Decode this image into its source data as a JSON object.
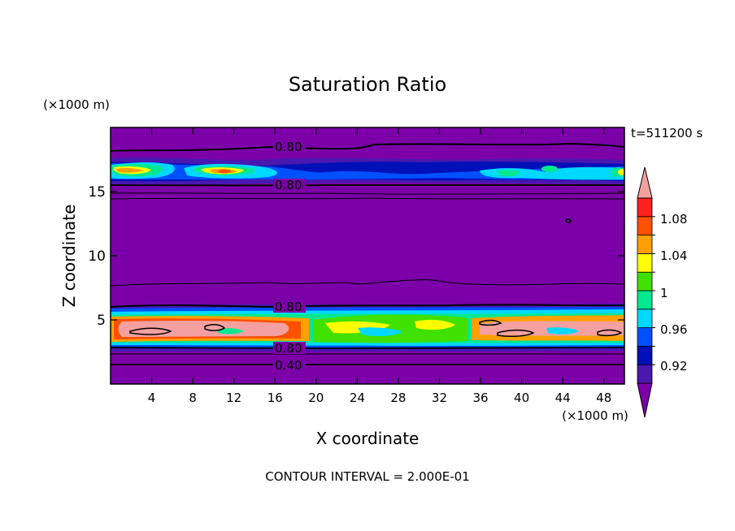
{
  "chart_data": {
    "type": "heatmap",
    "title": "Saturation Ratio",
    "xlabel": "X coordinate",
    "ylabel": "Z coordinate",
    "x_unit": "(×1000 m)",
    "y_unit": "(×1000 m)",
    "time_label": "t=511200 s",
    "footer": "CONTOUR INTERVAL = 2.000E-01",
    "xlim": [
      0,
      50
    ],
    "ylim": [
      0,
      20
    ],
    "x_ticks": [
      4,
      8,
      12,
      16,
      20,
      24,
      28,
      32,
      36,
      40,
      44,
      48
    ],
    "y_ticks": [
      5,
      10,
      15
    ],
    "colorbar": {
      "colors": [
        "#7b00a8",
        "#4a17b0",
        "#0010b8",
        "#0050ff",
        "#00d8ff",
        "#00e890",
        "#40e000",
        "#ffff00",
        "#ffa000",
        "#ff5000",
        "#ff2020",
        "#f4a0a0"
      ],
      "tick_labels": [
        "0.92",
        "0.96",
        "1",
        "1.04",
        "1.08"
      ]
    },
    "contour_labels": [
      {
        "text": "0.80",
        "x": 20.6,
        "y": 18.1
      },
      {
        "text": "0.80",
        "x": 20.6,
        "y": 15.2
      },
      {
        "text": "0.80",
        "x": 20.6,
        "y": 5.9
      },
      {
        "text": "0.80",
        "x": 20.6,
        "y": 2.8
      },
      {
        "text": "0.40",
        "x": 20.6,
        "y": 1.5
      }
    ]
  },
  "colors": {
    "background": "#7b00a8",
    "blue_dark": "#0010b8",
    "blue": "#0050ff",
    "cyan": "#00d8ff",
    "green": "#00e890",
    "lime": "#40e000",
    "yellow": "#ffff00",
    "orange": "#ffa000",
    "red_orange": "#ff5000",
    "red": "#ff2020",
    "pink": "#f4a0a0"
  }
}
